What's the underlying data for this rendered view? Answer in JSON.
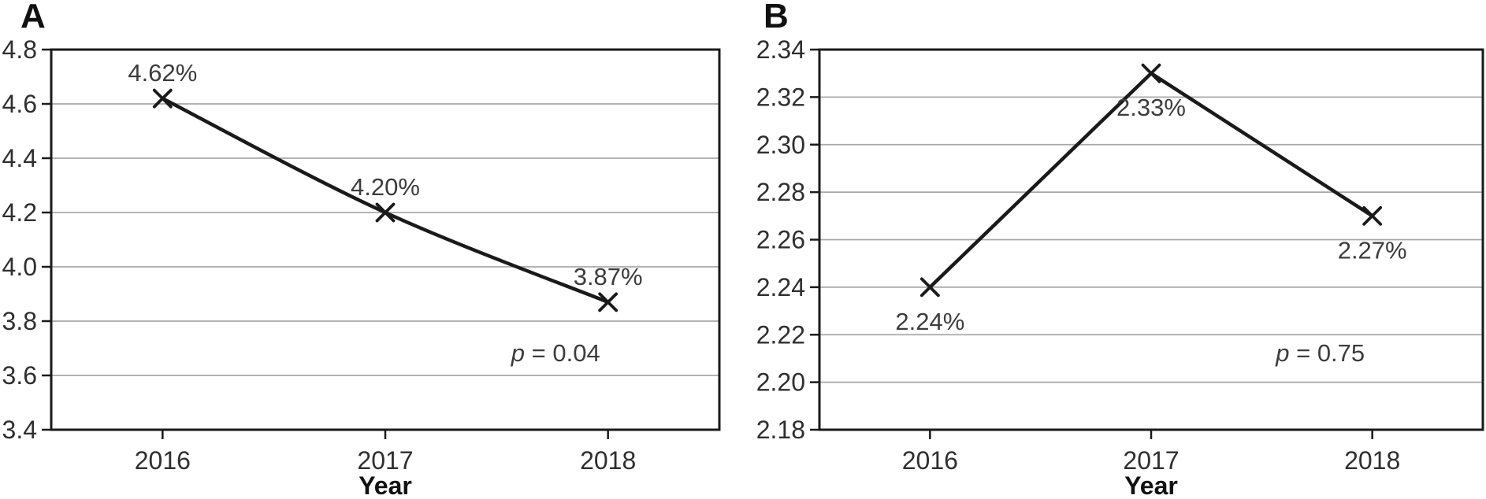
{
  "figure": {
    "background": "#ffffff",
    "line_color": "#1a1a1a",
    "grid_color": "#a8a8a8",
    "axis_color": "#1a1a1a",
    "text_color": "#2f2f2f",
    "label_color": "#3c3c3c"
  },
  "chart_data": [
    {
      "panel_label": "A",
      "type": "line",
      "title": "",
      "xlabel": "Year",
      "ylabel": "",
      "categories": [
        "2016",
        "2017",
        "2018"
      ],
      "values": [
        4.62,
        4.2,
        3.87
      ],
      "point_labels": [
        "4.62%",
        "4.20%",
        "3.87%"
      ],
      "label_position": "above",
      "annotation": "p = 0.04",
      "ylim": [
        3.4,
        4.8
      ],
      "ytick_labels": [
        "4.8",
        "4.6",
        "4.4",
        "4.2",
        "4.0",
        "3.8",
        "3.6",
        "3.4"
      ],
      "grid": true,
      "legend": "none",
      "marker": "x",
      "smooth": true
    },
    {
      "panel_label": "B",
      "type": "line",
      "title": "",
      "xlabel": "Year",
      "ylabel": "",
      "categories": [
        "2016",
        "2017",
        "2018"
      ],
      "values": [
        2.24,
        2.33,
        2.27
      ],
      "point_labels": [
        "2.24%",
        "2.33%",
        "2.27%"
      ],
      "label_position": "below",
      "annotation": "p = 0.75",
      "ylim": [
        2.18,
        2.34
      ],
      "ytick_labels": [
        "2.34",
        "2.32",
        "2.30",
        "2.28",
        "2.26",
        "2.24",
        "2.22",
        "2.20",
        "2.18"
      ],
      "grid": true,
      "legend": "none",
      "marker": "x",
      "smooth": false
    }
  ]
}
